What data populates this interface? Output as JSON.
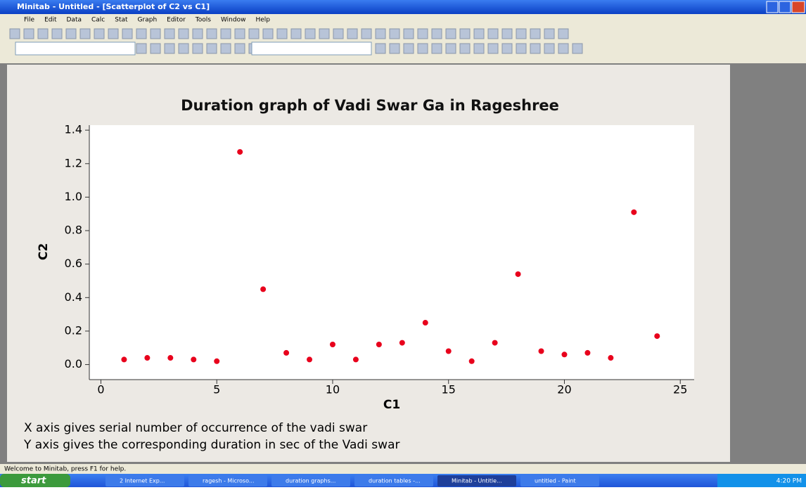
{
  "window": {
    "title": "Minitab - Untitled - [Scatterplot of C2 vs C1]",
    "menu": [
      "File",
      "Edit",
      "Data",
      "Calc",
      "Stat",
      "Graph",
      "Editor",
      "Tools",
      "Window",
      "Help"
    ],
    "status": "Welcome to Minitab, press F1 for help.",
    "taskbar": {
      "start": "start",
      "items": [
        "2 Internet Exp...",
        "ragesh - Microso...",
        "duration graphs...",
        "duration tables -...",
        "Minitab - Untitle...",
        "untitled - Paint"
      ],
      "clock": "4:20 PM"
    }
  },
  "chart_data": {
    "type": "scatter",
    "title": "Duration graph of Vadi Swar Ga in Rageshree",
    "x_label": "C1",
    "y_label": "C2",
    "x": [
      1,
      2,
      3,
      4,
      5,
      6,
      7,
      8,
      9,
      10,
      11,
      12,
      13,
      14,
      15,
      16,
      17,
      18,
      19,
      20,
      21,
      22,
      23,
      24
    ],
    "values": [
      0.03,
      0.04,
      0.04,
      0.03,
      0.02,
      1.27,
      0.45,
      0.07,
      0.03,
      0.12,
      0.03,
      0.12,
      0.13,
      0.25,
      0.08,
      0.02,
      0.13,
      0.54,
      0.08,
      0.06,
      0.07,
      0.04,
      0.91,
      0.17
    ],
    "color": "#e8001c",
    "xlim": [
      -0.5,
      25.6
    ],
    "xticks": [
      0,
      5,
      10,
      15,
      20,
      25
    ],
    "ylim": [
      -0.09,
      1.43
    ],
    "yticks": [
      {
        "value": 0,
        "label": "0.0"
      },
      0.2,
      0.4,
      0.6,
      0.8,
      {
        "value": 1,
        "label": "1.0"
      },
      1.2,
      1.4
    ],
    "notes": [
      "X axis gives serial number of occurrence of the vadi swar",
      "Y axis gives the corresponding duration in sec of the Vadi swar"
    ]
  }
}
